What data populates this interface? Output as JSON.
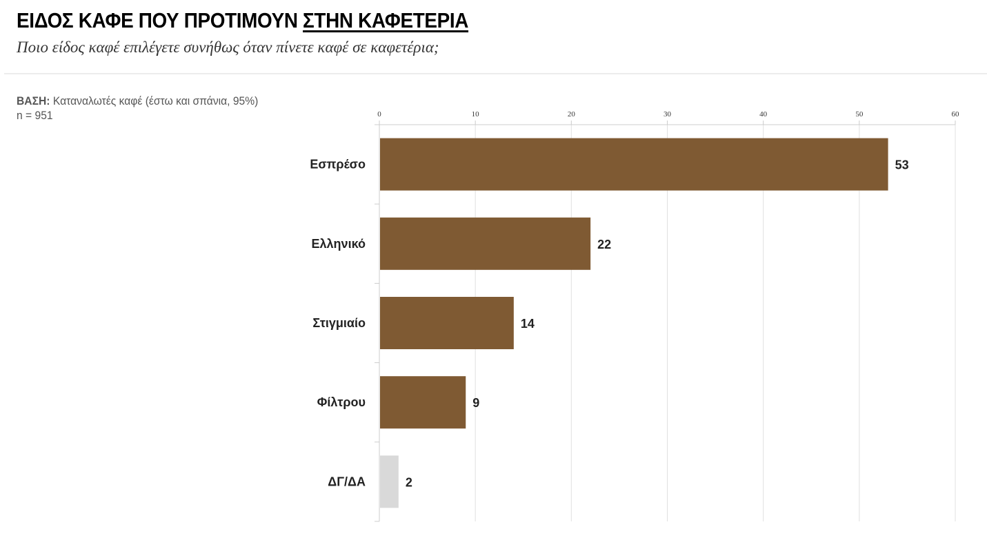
{
  "header": {
    "title_main": "ΕΙΔΟΣ ΚΑΦΕ ΠΟΥ ΠΡΟΤΙΜΟΥΝ ",
    "title_underlined": "ΣΤΗΝ ΚΑΦΕΤΕΡΙΑ",
    "subtitle": "Ποιο είδος καφέ επιλέγετε συνήθως όταν πίνετε καφέ σε καφετέρια;"
  },
  "base_note": {
    "label": "ΒΑΣΗ:",
    "text": "Καταναλωτές καφέ (έστω και σπάνια, 95%)",
    "n": "n = 951"
  },
  "colors": {
    "bar": "#7f5a33",
    "bar_dont_know": "#d9d9d9",
    "grid": "#e0e0e0",
    "axis": "#cccccc"
  },
  "chart_data": {
    "type": "bar",
    "orientation": "horizontal",
    "categories": [
      "Εσπρέσο",
      "Ελληνικό",
      "Στιγμιαίο",
      "Φίλτρου",
      "ΔΓ/ΔΑ"
    ],
    "values": [
      53,
      22,
      14,
      9,
      2
    ],
    "value_labels": [
      "53",
      "22",
      "14",
      "9",
      "2"
    ],
    "bar_colors": [
      "#7f5a33",
      "#7f5a33",
      "#7f5a33",
      "#7f5a33",
      "#d9d9d9"
    ],
    "xlim": [
      0,
      60
    ],
    "xticks": [
      0,
      10,
      20,
      30,
      40,
      50,
      60
    ],
    "xtick_labels": [
      "0",
      "10",
      "20",
      "30",
      "40",
      "50",
      "60"
    ],
    "xaxis_position": "top",
    "grid": true,
    "legend": "none",
    "title": "",
    "xlabel": "",
    "ylabel": ""
  }
}
